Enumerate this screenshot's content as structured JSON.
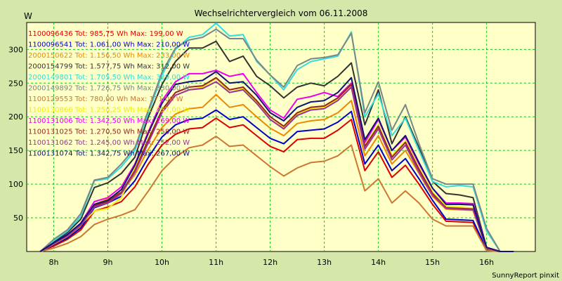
{
  "chart_data": {
    "type": "line",
    "title": "Wechselrichtervergleich vom 06.11.2008",
    "ylabel": "W",
    "xlabel": "",
    "ylim": [
      0,
      340
    ],
    "xlim": [
      7.5,
      16.9
    ],
    "yticks": [
      50,
      100,
      150,
      200,
      250,
      300
    ],
    "xticks": [
      {
        "value": 8,
        "label": "8h"
      },
      {
        "value": 9,
        "label": "9h"
      },
      {
        "value": 10,
        "label": "10h"
      },
      {
        "value": 11,
        "label": "11h"
      },
      {
        "value": 12,
        "label": "12h"
      },
      {
        "value": 13,
        "label": "13h"
      },
      {
        "value": 14,
        "label": "14h"
      },
      {
        "value": 15,
        "label": "15h"
      },
      {
        "value": 16,
        "label": "16h"
      }
    ],
    "grid": true,
    "legend_position": "top-left",
    "credit": "SunnyReport pinxit",
    "x": [
      7.75,
      8.0,
      8.25,
      8.5,
      8.75,
      9.0,
      9.25,
      9.5,
      9.75,
      10.0,
      10.25,
      10.5,
      10.75,
      11.0,
      11.25,
      11.5,
      11.75,
      12.0,
      12.25,
      12.5,
      12.75,
      13.0,
      13.25,
      13.5,
      13.75,
      14.0,
      14.25,
      14.5,
      14.75,
      15.0,
      15.25,
      15.5,
      15.75,
      16.0,
      16.25,
      16.5
    ],
    "series": [
      {
        "name": "1100096436 Tot: 985,75 Wh Max: 199,00 W",
        "color": "#dd0000",
        "values": [
          0,
          8,
          18,
          32,
          60,
          66,
          74,
          96,
          130,
          158,
          174,
          182,
          184,
          198,
          184,
          188,
          172,
          156,
          148,
          166,
          168,
          168,
          180,
          196,
          120,
          148,
          110,
          128,
          100,
          70,
          45,
          44,
          43,
          2,
          0,
          0
        ]
      },
      {
        "name": "1100096541 Tot: 1.061,00 Wh Max: 210,00 W",
        "color": "#0000cc",
        "values": [
          0,
          10,
          20,
          35,
          65,
          72,
          82,
          105,
          140,
          170,
          188,
          196,
          198,
          210,
          196,
          200,
          184,
          168,
          160,
          178,
          180,
          182,
          192,
          208,
          130,
          158,
          120,
          138,
          108,
          76,
          48,
          47,
          46,
          3,
          0,
          0
        ]
      },
      {
        "name": "2000150622 Tot: 1.156,50 Wh Max: 233,00 W",
        "color": "#ee8800",
        "values": [
          0,
          11,
          22,
          38,
          70,
          78,
          88,
          114,
          152,
          184,
          204,
          212,
          214,
          233,
          214,
          218,
          200,
          183,
          172,
          190,
          194,
          196,
          206,
          224,
          142,
          172,
          130,
          150,
          116,
          82,
          63,
          62,
          61,
          4,
          0,
          0
        ]
      },
      {
        "name": "2000154799 Tot: 1.577,75 Wh Max: 312,00 W",
        "color": "#333333",
        "values": [
          0,
          14,
          28,
          48,
          95,
          102,
          116,
          140,
          200,
          248,
          282,
          302,
          302,
          312,
          282,
          290,
          260,
          246,
          228,
          244,
          250,
          246,
          260,
          280,
          188,
          240,
          160,
          200,
          154,
          104,
          86,
          84,
          80,
          6,
          0,
          0
        ]
      },
      {
        "name": "2000149801 Tot: 1.705,50 Wh Max: 339,00 W",
        "color": "#33dddd",
        "values": [
          0,
          16,
          30,
          52,
          105,
          108,
          126,
          150,
          206,
          262,
          300,
          318,
          322,
          339,
          320,
          322,
          282,
          262,
          240,
          270,
          282,
          286,
          290,
          326,
          200,
          234,
          172,
          198,
          150,
          104,
          96,
          98,
          96,
          30,
          0,
          0
        ]
      },
      {
        "name": "2000149892 Tot: 1.726,75 Wh Max: 330,00 W",
        "color": "#778888",
        "values": [
          0,
          18,
          32,
          56,
          106,
          110,
          130,
          154,
          210,
          266,
          302,
          314,
          318,
          330,
          316,
          316,
          284,
          262,
          244,
          276,
          286,
          288,
          292,
          324,
          206,
          252,
          180,
          218,
          160,
          108,
          100,
          100,
          100,
          34,
          0,
          0
        ]
      },
      {
        "name": "1100129553 Tot: 780,00 Wh Max: 171,00 W",
        "color": "#cc7733",
        "values": [
          0,
          5,
          12,
          22,
          40,
          48,
          54,
          62,
          90,
          120,
          140,
          154,
          158,
          171,
          156,
          158,
          142,
          126,
          112,
          124,
          132,
          134,
          142,
          158,
          90,
          108,
          72,
          90,
          72,
          48,
          38,
          38,
          38,
          1,
          0,
          0
        ]
      },
      {
        "name": "1100130866 Tot: 1.250,25 Wh Max: 257,00 W",
        "color": "#eeee00",
        "values": [
          0,
          12,
          24,
          40,
          60,
          64,
          80,
          124,
          168,
          208,
          232,
          240,
          244,
          257,
          236,
          242,
          222,
          196,
          184,
          204,
          212,
          214,
          226,
          246,
          158,
          188,
          142,
          164,
          124,
          88,
          67,
          66,
          64,
          5,
          0,
          0
        ]
      },
      {
        "name": "1100131006 Tot: 1.342,50 Wh Max: 269,00 W",
        "color": "#ee00ee",
        "values": [
          0,
          13,
          25,
          42,
          74,
          80,
          96,
          130,
          178,
          224,
          252,
          264,
          264,
          269,
          260,
          264,
          236,
          210,
          198,
          226,
          230,
          236,
          230,
          250,
          162,
          196,
          150,
          170,
          130,
          94,
          72,
          72,
          71,
          6,
          0,
          0
        ]
      },
      {
        "name": "1100131025 Tot: 1.270,50 Wh Max: 258,00 W",
        "color": "#992222",
        "values": [
          0,
          12,
          24,
          40,
          68,
          74,
          88,
          120,
          166,
          210,
          236,
          244,
          246,
          258,
          240,
          244,
          224,
          200,
          186,
          206,
          214,
          216,
          228,
          248,
          156,
          186,
          140,
          162,
          122,
          86,
          65,
          64,
          63,
          5,
          0,
          0
        ]
      },
      {
        "name": "1100131062 Tot: 1.245,00 Wh Max: 252,00 W",
        "color": "#993399",
        "values": [
          0,
          12,
          23,
          39,
          66,
          72,
          86,
          118,
          162,
          206,
          232,
          240,
          242,
          252,
          236,
          240,
          220,
          196,
          182,
          202,
          210,
          212,
          224,
          244,
          152,
          182,
          136,
          158,
          118,
          84,
          64,
          63,
          62,
          5,
          0,
          0
        ]
      },
      {
        "name": "1100131074 Tot: 1.342,75 Wh Max: 267,00 W",
        "color": "#111177",
        "values": [
          0,
          13,
          25,
          42,
          70,
          76,
          92,
          128,
          176,
          220,
          248,
          252,
          254,
          267,
          250,
          252,
          232,
          206,
          194,
          214,
          222,
          224,
          236,
          258,
          166,
          198,
          150,
          172,
          132,
          94,
          70,
          70,
          69,
          6,
          0,
          0
        ]
      }
    ]
  }
}
